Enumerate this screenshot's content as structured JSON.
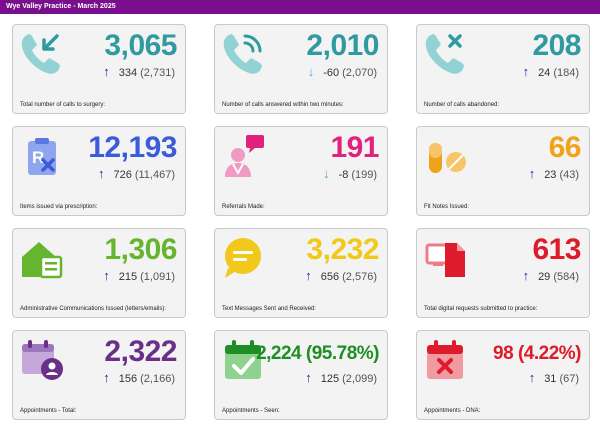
{
  "header": {
    "title": "Wye Valley Practice - March 2025"
  },
  "colors": {
    "header_bg": "#7a0f8e",
    "teal": "#2f9aa0",
    "phone_light": "#93d2d4",
    "blue": "#3b5bd9",
    "pink": "#e0227e",
    "orange": "#f0a21b",
    "green": "#66b52e",
    "yellow": "#f2c81a",
    "red": "#de1b2a",
    "purple": "#6a2f86",
    "seen_green": "#1d8f25",
    "arrow_up": "#1f2f9e",
    "arrow_down": "#43a9df"
  },
  "cards": [
    {
      "value": "3,065",
      "arrow": "↑",
      "direction": "up",
      "delta": "334",
      "previous": "(2,731)",
      "label": "Total number of calls to surgery:",
      "icon": "incoming-call-icon"
    },
    {
      "value": "2,010",
      "arrow": "↓",
      "direction": "down",
      "delta": "-60",
      "previous": "(2,070)",
      "label": "Number of calls answered within two minutes:",
      "icon": "phone-ringing-icon"
    },
    {
      "value": "208",
      "arrow": "↑",
      "direction": "up",
      "delta": "24",
      "previous": "(184)",
      "label": "Number of calls abandoned:",
      "icon": "missed-call-icon"
    },
    {
      "value": "12,193",
      "arrow": "↑",
      "direction": "up",
      "delta": "726",
      "previous": "(11,467)",
      "label": "Items issued via prescription:",
      "icon": "prescription-icon"
    },
    {
      "value": "191",
      "arrow": "↓",
      "direction": "down",
      "delta": "-8",
      "previous": "(199)",
      "label": "Referrals Made:",
      "icon": "doctor-referral-icon"
    },
    {
      "value": "66",
      "arrow": "↑",
      "direction": "up",
      "delta": "23",
      "previous": "(43)",
      "label": "Fit Notes Issued:",
      "icon": "pills-icon"
    },
    {
      "value": "1,306",
      "arrow": "↑",
      "direction": "up",
      "delta": "215",
      "previous": "(1,091)",
      "label": "Administrative Communications Issued (letters/emails):",
      "icon": "house-letter-icon"
    },
    {
      "value": "3,232",
      "arrow": "↑",
      "direction": "up",
      "delta": "656",
      "previous": "(2,576)",
      "label": "Text Messages Sent and Received:",
      "icon": "chat-bubble-icon"
    },
    {
      "value": "613",
      "arrow": "↑",
      "direction": "up",
      "delta": "29",
      "previous": "(584)",
      "label": "Total digital requests submitted to practice:",
      "icon": "digital-request-icon"
    },
    {
      "value": "2,322",
      "arrow": "↑",
      "direction": "up",
      "delta": "156",
      "previous": "(2,166)",
      "label": "Appointments - Total:",
      "icon": "calendar-person-icon"
    },
    {
      "value": "2,224 (95.78%)",
      "arrow": "↑",
      "direction": "up",
      "delta": "125",
      "previous": "(2,099)",
      "label": "Appointments - Seen:",
      "icon": "calendar-check-icon"
    },
    {
      "value": "98 (4.22%)",
      "arrow": "↑",
      "direction": "up",
      "delta": "31",
      "previous": "(67)",
      "label": "Appointments - DNA:",
      "icon": "calendar-cross-icon"
    }
  ]
}
